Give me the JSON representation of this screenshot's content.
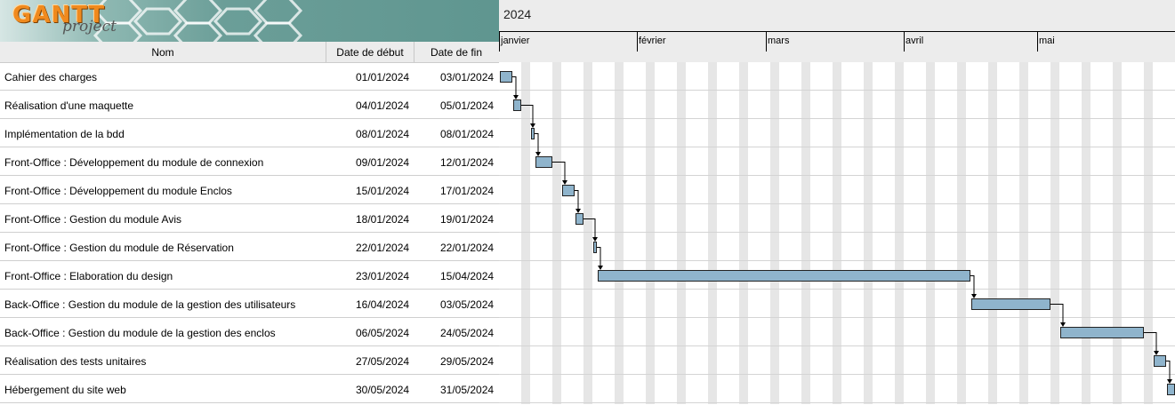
{
  "logo": {
    "gantt": "GANTT",
    "project": "project"
  },
  "timeline": {
    "year": "2024",
    "months": [
      {
        "label": "janvier",
        "start": "2024-01-01"
      },
      {
        "label": "février",
        "start": "2024-02-01"
      },
      {
        "label": "mars",
        "start": "2024-03-01"
      },
      {
        "label": "avril",
        "start": "2024-04-01"
      },
      {
        "label": "mai",
        "start": "2024-05-01"
      }
    ]
  },
  "columns": {
    "name": "Nom",
    "start": "Date de début",
    "end": "Date de fin"
  },
  "tasks": [
    {
      "name": "Cahier des charges",
      "start": "01/01/2024",
      "end": "03/01/2024"
    },
    {
      "name": "Réalisation d'une maquette",
      "start": "04/01/2024",
      "end": "05/01/2024"
    },
    {
      "name": "Implémentation de la bdd",
      "start": "08/01/2024",
      "end": "08/01/2024"
    },
    {
      "name": "Front-Office : Développement du module de connexion",
      "start": "09/01/2024",
      "end": "12/01/2024"
    },
    {
      "name": "Front-Office : Développement du module Enclos",
      "start": "15/01/2024",
      "end": "17/01/2024"
    },
    {
      "name": "Front-Office : Gestion du module Avis",
      "start": "18/01/2024",
      "end": "19/01/2024"
    },
    {
      "name": "Front-Office : Gestion du module de Réservation",
      "start": "22/01/2024",
      "end": "22/01/2024"
    },
    {
      "name": "Front-Office : Elaboration du design",
      "start": "23/01/2024",
      "end": "15/04/2024"
    },
    {
      "name": "Back-Office : Gestion du module de la gestion des utilisateurs",
      "start": "16/04/2024",
      "end": "03/05/2024"
    },
    {
      "name": "Back-Office : Gestion du module de la gestion des enclos",
      "start": "06/05/2024",
      "end": "24/05/2024"
    },
    {
      "name": "Réalisation des tests unitaires",
      "start": "27/05/2024",
      "end": "29/05/2024"
    },
    {
      "name": "Hébergement du site web",
      "start": "30/05/2024",
      "end": "31/05/2024"
    }
  ],
  "colors": {
    "bar": "#8fb4cc",
    "weekend": "#e6e6e6",
    "header": "#ececec"
  }
}
